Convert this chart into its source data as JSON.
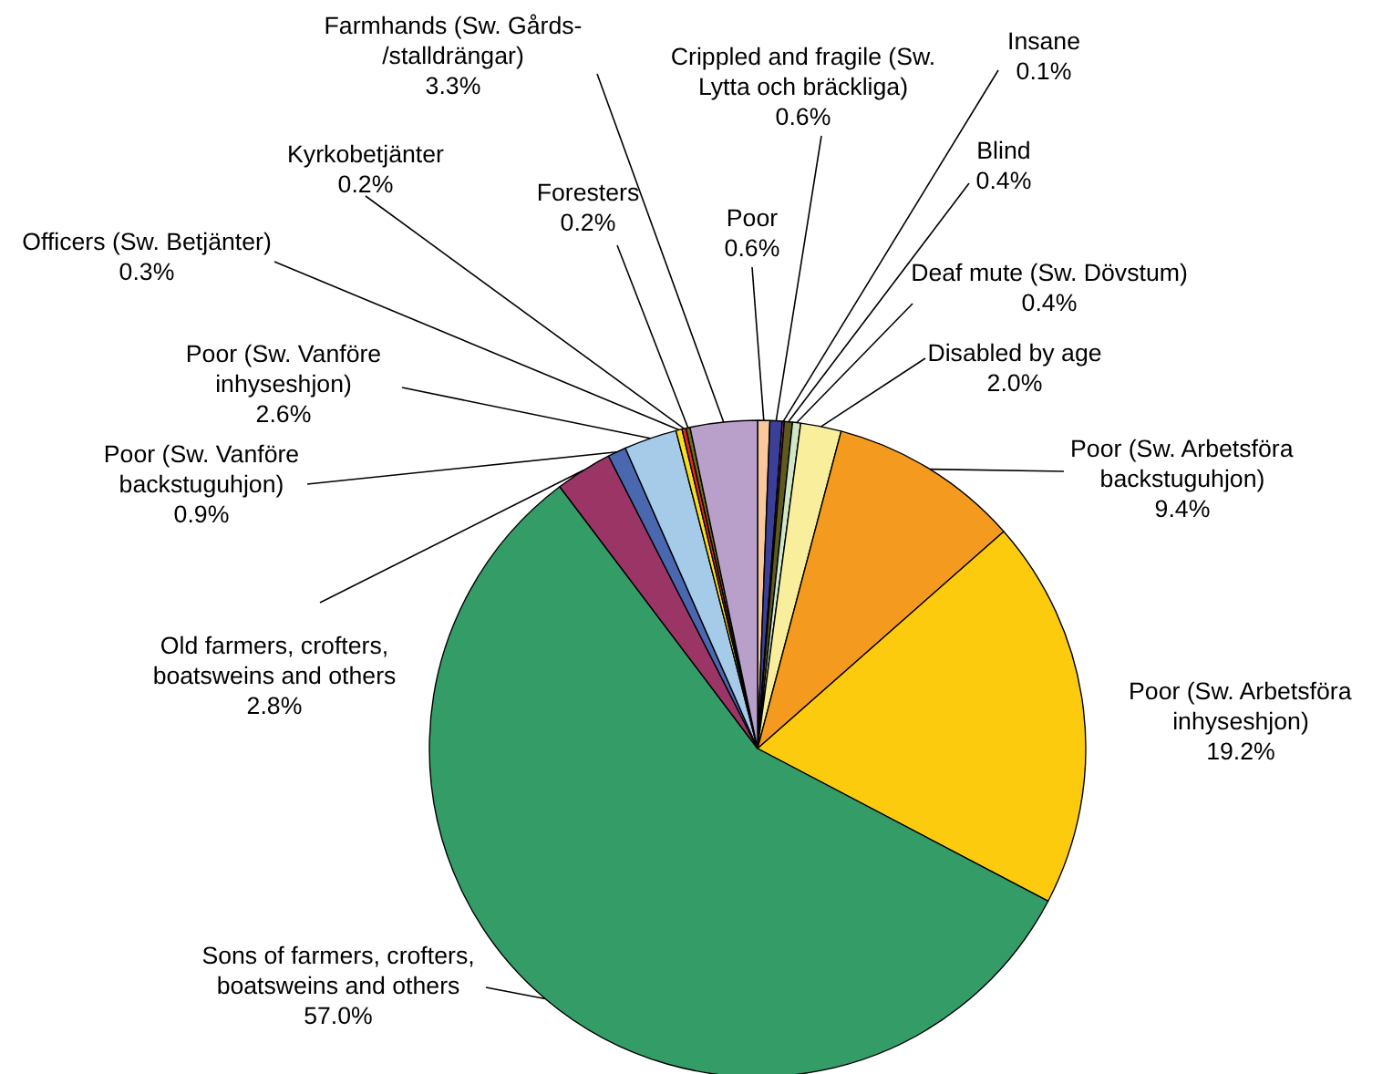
{
  "chart_data": {
    "type": "pie",
    "categories": [
      "Poor",
      "Crippled and fragile (Sw.\nLytta och bräckliga)",
      "Insane",
      "Blind",
      "Deaf mute (Sw. Dövstum)",
      "Disabled by age",
      "Poor (Sw. Arbetsföra\nbackstuguhjon)",
      "Poor (Sw. Arbetsföra\ninhyseshjon)",
      "Sons of farmers, crofters,\nboatsweins and others",
      "Old farmers, crofters,\nboatsweins and others",
      "Poor (Sw. Vanföre\nbackstuguhjon)",
      "Poor (Sw. Vanföre\ninhyseshjon)",
      "Officers (Sw. Betjänter)",
      "Kyrkobetjänter",
      "Foresters",
      "Farmhands (Sw. Gårds-\n/stalldrängar)"
    ],
    "values": [
      0.6,
      0.6,
      0.1,
      0.4,
      0.4,
      2.0,
      9.4,
      19.2,
      57.0,
      2.8,
      0.9,
      2.6,
      0.3,
      0.2,
      0.2,
      3.3
    ],
    "value_labels": [
      "0.6%",
      "0.6%",
      "0.1%",
      "0.4%",
      "0.4%",
      "2.0%",
      "9.4%",
      "19.2%",
      "57.0%",
      "2.8%",
      "0.9%",
      "2.6%",
      "0.3%",
      "0.2%",
      "0.2%",
      "3.3%"
    ],
    "colors": [
      "#f9c89b",
      "#3b3f97",
      "#9b3d8f",
      "#5e5a1e",
      "#cfe6c8",
      "#f8ee9c",
      "#f39a1f",
      "#fdcb0d",
      "#349c67",
      "#9a3565",
      "#4a68b0",
      "#a5cbe9",
      "#f7e01b",
      "#e5262a",
      "#6b6b16",
      "#b8a0cb"
    ]
  }
}
